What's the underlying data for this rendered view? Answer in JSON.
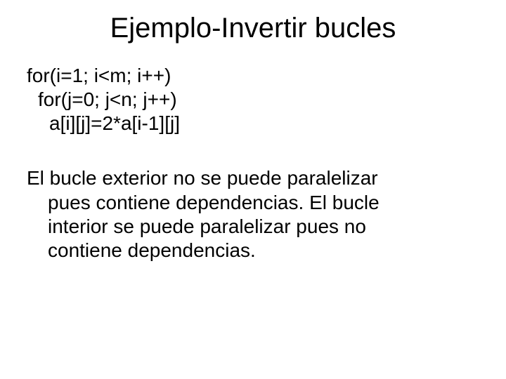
{
  "slide": {
    "title": "Ejemplo-Invertir bucles",
    "title_fontsize": 40,
    "body_fontsize": 28,
    "background_color": "#ffffff",
    "text_color": "#000000",
    "font_family": "Arial",
    "code": {
      "line1": "for(i=1; i<m; i++)",
      "line2": "for(j=0; j<n; j++)",
      "line3": "a[i][j]=2*a[i-1][j]"
    },
    "paragraph": {
      "l1": "El bucle exterior no se puede paralelizar",
      "l2": "pues contiene dependencias. El bucle",
      "l3": "interior se puede paralelizar pues no",
      "l4": "contiene dependencias."
    }
  }
}
